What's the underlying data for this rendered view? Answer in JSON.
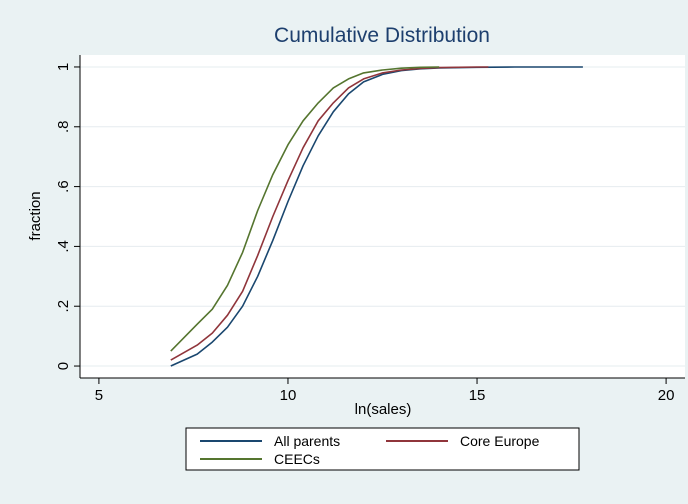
{
  "chart_data": {
    "type": "line",
    "title": "Cumulative Distribution",
    "xlabel": "ln(sales)",
    "ylabel": "fraction",
    "xlim": [
      4.5,
      20.5
    ],
    "ylim": [
      -0.04,
      1.04
    ],
    "x_ticks": [
      5,
      10,
      15,
      20
    ],
    "x_tick_labels": [
      "5",
      "10",
      "15",
      "20"
    ],
    "y_ticks": [
      0,
      0.2,
      0.4,
      0.6,
      0.8,
      1
    ],
    "y_tick_labels": [
      "0",
      ".2",
      ".4",
      ".6",
      ".8",
      "1"
    ],
    "grid": "horizontal",
    "legend_position": "bottom",
    "legend": [
      "All parents",
      "Core Europe",
      "CEECs"
    ],
    "series": [
      {
        "name": "All parents",
        "color": "#1a476f",
        "x": [
          6.9,
          7.6,
          8.0,
          8.4,
          8.8,
          9.2,
          9.6,
          10.0,
          10.4,
          10.8,
          11.2,
          11.6,
          12.0,
          12.5,
          13.0,
          13.5,
          14.0,
          15.0,
          16.0,
          17.0,
          17.8
        ],
        "y": [
          0.0,
          0.04,
          0.08,
          0.13,
          0.2,
          0.3,
          0.42,
          0.55,
          0.67,
          0.77,
          0.85,
          0.91,
          0.95,
          0.975,
          0.988,
          0.994,
          0.997,
          0.999,
          1.0,
          1.0,
          1.0
        ]
      },
      {
        "name": "Core Europe",
        "color": "#90353b",
        "x": [
          6.9,
          7.6,
          8.0,
          8.4,
          8.8,
          9.2,
          9.6,
          10.0,
          10.4,
          10.8,
          11.2,
          11.6,
          12.0,
          12.5,
          13.0,
          13.5,
          14.0,
          15.0,
          15.3
        ],
        "y": [
          0.02,
          0.07,
          0.11,
          0.17,
          0.25,
          0.37,
          0.5,
          0.62,
          0.73,
          0.82,
          0.88,
          0.93,
          0.96,
          0.98,
          0.99,
          0.995,
          0.998,
          1.0,
          1.0
        ]
      },
      {
        "name": "CEECs",
        "color": "#55752f",
        "x": [
          6.9,
          7.6,
          8.0,
          8.4,
          8.8,
          9.2,
          9.6,
          10.0,
          10.4,
          10.8,
          11.2,
          11.6,
          12.0,
          12.5,
          13.0,
          13.5,
          14.0
        ],
        "y": [
          0.05,
          0.14,
          0.19,
          0.27,
          0.38,
          0.52,
          0.64,
          0.74,
          0.82,
          0.88,
          0.93,
          0.96,
          0.98,
          0.99,
          0.996,
          0.999,
          1.0
        ]
      }
    ]
  }
}
